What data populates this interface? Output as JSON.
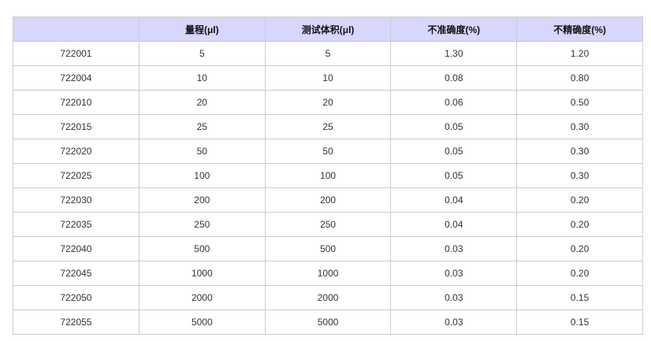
{
  "colors": {
    "header_bg": "#d6d6ff",
    "border": "#cccccc"
  },
  "headers": [
    "",
    "量程(μl)",
    "测试体积(μl)",
    "不准确度(%)",
    "不精确度(%)"
  ],
  "rows": [
    [
      "722001",
      "5",
      "5",
      "1.30",
      "1.20"
    ],
    [
      "722004",
      "10",
      "10",
      "0.08",
      "0.80"
    ],
    [
      "722010",
      "20",
      "20",
      "0.06",
      "0.50"
    ],
    [
      "722015",
      "25",
      "25",
      "0.05",
      "0.30"
    ],
    [
      "722020",
      "50",
      "50",
      "0.05",
      "0.30"
    ],
    [
      "722025",
      "100",
      "100",
      "0.05",
      "0.30"
    ],
    [
      "722030",
      "200",
      "200",
      "0.04",
      "0.20"
    ],
    [
      "722035",
      "250",
      "250",
      "0.04",
      "0.20"
    ],
    [
      "722040",
      "500",
      "500",
      "0.03",
      "0.20"
    ],
    [
      "722045",
      "1000",
      "1000",
      "0.03",
      "0.20"
    ],
    [
      "722050",
      "2000",
      "2000",
      "0.03",
      "0.15"
    ],
    [
      "722055",
      "5000",
      "5000",
      "0.03",
      "0.15"
    ]
  ]
}
